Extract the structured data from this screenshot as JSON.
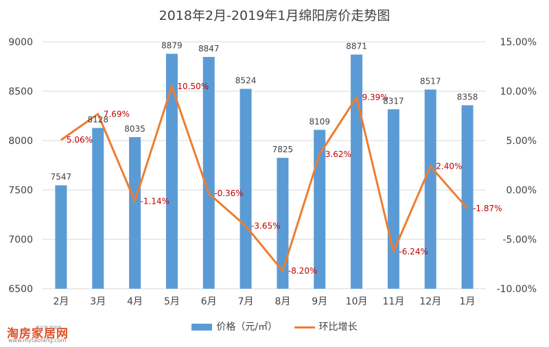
{
  "chart_data": {
    "type": "bar+line",
    "title": "2018年2月-2019年1月绵阳房价走势图",
    "categories": [
      "2月",
      "3月",
      "4月",
      "5月",
      "6月",
      "7月",
      "8月",
      "9月",
      "10月",
      "11月",
      "12月",
      "1月"
    ],
    "series": [
      {
        "name": "价格（元/㎡）",
        "type": "bar",
        "axis": "left",
        "color": "#5b9bd5",
        "values": [
          7547,
          8128,
          8035,
          8879,
          8847,
          8524,
          7825,
          8109,
          8871,
          8317,
          8517,
          8358
        ],
        "labels": [
          "7547",
          "8128",
          "8035",
          "8879",
          "8847",
          "8524",
          "7825",
          "8109",
          "8871",
          "8317",
          "8517",
          "8358"
        ]
      },
      {
        "name": "环比增长",
        "type": "line",
        "axis": "right",
        "color": "#ed7d31",
        "values": [
          5.06,
          7.69,
          -1.14,
          10.5,
          -0.36,
          -3.65,
          -8.2,
          3.62,
          9.39,
          -6.24,
          2.4,
          -1.87
        ],
        "labels": [
          "5.06%",
          "7.69%",
          "-1.14%",
          "10.50%",
          "-0.36%",
          "-3.65%",
          "-8.20%",
          "3.62%",
          "9.39%",
          "-6.24%",
          "2.40%",
          "-1.87%"
        ]
      }
    ],
    "y_left": {
      "min": 6500,
      "max": 9000,
      "ticks": [
        "6500",
        "7000",
        "7500",
        "8000",
        "8500",
        "9000"
      ]
    },
    "y_right": {
      "min": -10,
      "max": 15,
      "ticks": [
        "-10.00%",
        "-5.00%",
        "0.00%",
        "5.00%",
        "10.00%",
        "15.00%"
      ]
    },
    "grid": true,
    "legend": "bottom"
  },
  "watermark": {
    "main": "淘房家居网",
    "sub": "我买房 我卖房",
    "url": "www.mytaofang.com"
  },
  "colors": {
    "bar": "#5b9bd5",
    "line": "#ed7d31",
    "line_label": "#c00000",
    "grid": "#d9d9d9",
    "text": "#404040"
  }
}
